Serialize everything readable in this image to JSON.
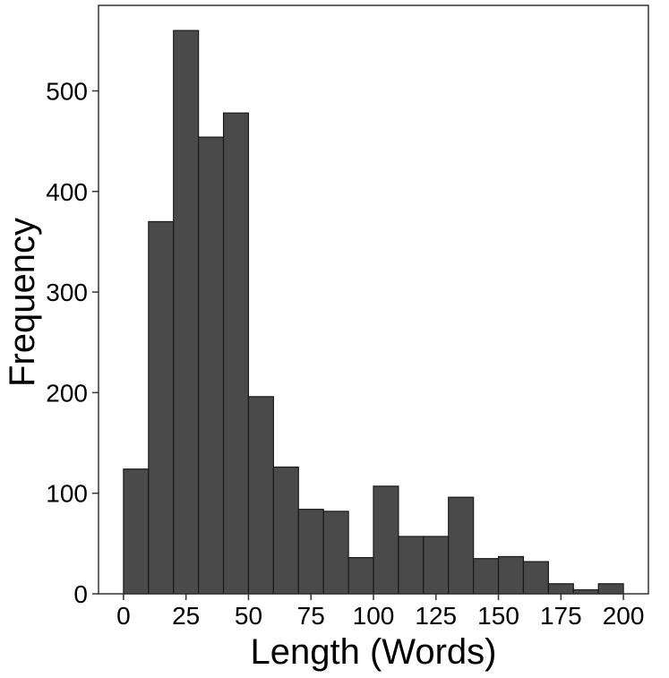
{
  "colors": {
    "bar_fill": "#4a4a4a",
    "bar_stroke": "#1a1a1a",
    "frame": "#333333",
    "background": "#ffffff"
  },
  "chart_data": {
    "type": "bar",
    "title": "",
    "xlabel": "Length (Words)",
    "ylabel": "Frequency",
    "grid": false,
    "legend": "none",
    "bin_width": 10,
    "bins": [
      {
        "x0": 0,
        "x1": 10,
        "value": 124
      },
      {
        "x0": 10,
        "x1": 20,
        "value": 370
      },
      {
        "x0": 20,
        "x1": 30,
        "value": 560
      },
      {
        "x0": 30,
        "x1": 40,
        "value": 454
      },
      {
        "x0": 40,
        "x1": 50,
        "value": 478
      },
      {
        "x0": 50,
        "x1": 60,
        "value": 196
      },
      {
        "x0": 60,
        "x1": 70,
        "value": 126
      },
      {
        "x0": 70,
        "x1": 80,
        "value": 84
      },
      {
        "x0": 80,
        "x1": 90,
        "value": 82
      },
      {
        "x0": 90,
        "x1": 100,
        "value": 36
      },
      {
        "x0": 100,
        "x1": 110,
        "value": 107
      },
      {
        "x0": 110,
        "x1": 120,
        "value": 57
      },
      {
        "x0": 120,
        "x1": 130,
        "value": 57
      },
      {
        "x0": 130,
        "x1": 140,
        "value": 96
      },
      {
        "x0": 140,
        "x1": 150,
        "value": 35
      },
      {
        "x0": 150,
        "x1": 160,
        "value": 37
      },
      {
        "x0": 160,
        "x1": 170,
        "value": 32
      },
      {
        "x0": 170,
        "x1": 180,
        "value": 10
      },
      {
        "x0": 180,
        "x1": 190,
        "value": 4
      },
      {
        "x0": 190,
        "x1": 200,
        "value": 10
      }
    ],
    "xlim": [
      -10,
      210
    ],
    "ylim": [
      0,
      585
    ],
    "x_ticks": [
      {
        "value": 0,
        "label": "0"
      },
      {
        "value": 25,
        "label": "25"
      },
      {
        "value": 50,
        "label": "50"
      },
      {
        "value": 75,
        "label": "75"
      },
      {
        "value": 100,
        "label": "100"
      },
      {
        "value": 125,
        "label": "125"
      },
      {
        "value": 150,
        "label": "150"
      },
      {
        "value": 175,
        "label": "175"
      },
      {
        "value": 200,
        "label": "200"
      }
    ],
    "y_ticks": [
      {
        "value": 0,
        "label": "0"
      },
      {
        "value": 100,
        "label": "100"
      },
      {
        "value": 200,
        "label": "200"
      },
      {
        "value": 300,
        "label": "300"
      },
      {
        "value": 400,
        "label": "400"
      },
      {
        "value": 500,
        "label": "500"
      }
    ]
  }
}
